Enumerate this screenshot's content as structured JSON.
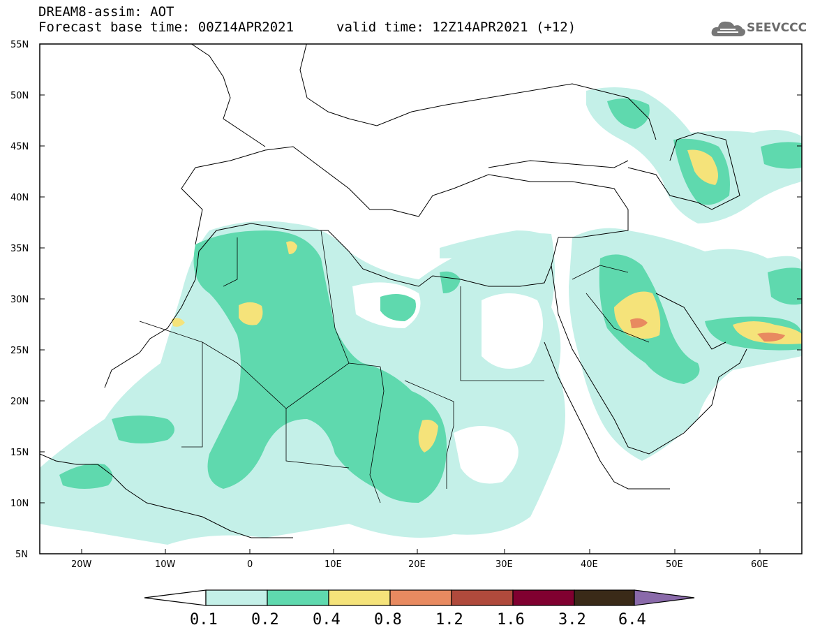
{
  "header": {
    "title_line_1": "DREAM8-assim: AOT",
    "title_line_2": "Forecast base time: 00Z14APR2021",
    "valid_time": "valid time: 12Z14APR2021 (+12)"
  },
  "logo": {
    "text": "SEEVCCC",
    "icon": "cloud-icon"
  },
  "map": {
    "variable": "AOT",
    "lon_range": [
      -25,
      65
    ],
    "lat_range": [
      5,
      55
    ],
    "lat_ticks": [
      "55N",
      "50N",
      "45N",
      "40N",
      "35N",
      "30N",
      "25N",
      "20N",
      "15N",
      "10N",
      "5N"
    ],
    "lon_ticks": [
      "20W",
      "10W",
      "0",
      "10E",
      "20E",
      "30E",
      "40E",
      "50E",
      "60E"
    ],
    "background_color": "#ffffff",
    "coastline_color": "#000000"
  },
  "colorbar": {
    "levels": [
      "0.1",
      "0.2",
      "0.4",
      "0.8",
      "1.2",
      "1.6",
      "3.2",
      "6.4"
    ],
    "colors": [
      "#ffffff",
      "#c4f0e8",
      "#5fd9ae",
      "#f5e37a",
      "#e88a60",
      "#b04a3c",
      "#800030",
      "#3a2a18",
      "#8a6aaa"
    ]
  }
}
